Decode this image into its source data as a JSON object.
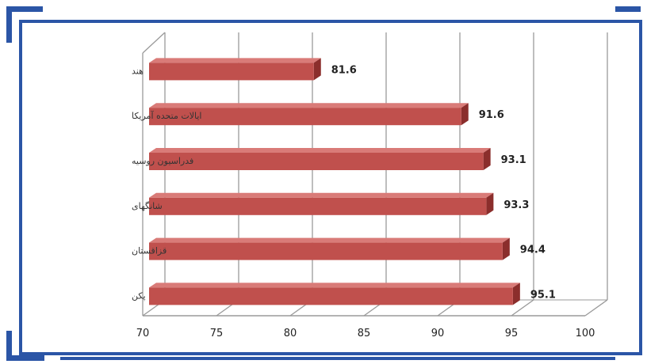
{
  "colors": {
    "frame": "#2b55a6",
    "bar_front": "#c0504d",
    "bar_top": "#d97b78",
    "bar_side": "#8b2e2c",
    "grid": "#9a9a9a"
  },
  "chart_data": {
    "type": "bar",
    "orientation": "horizontal",
    "style": "3d",
    "categories": [
      "هند",
      "ایالات متحده آمریکا",
      "فدراسیون روسیه",
      "شانگهای",
      "قزاقستان",
      "پکن"
    ],
    "values": [
      81.6,
      91.6,
      93.1,
      93.3,
      94.4,
      95.1
    ],
    "value_labels": [
      "81.6",
      "91.6",
      "93.1",
      "93.3",
      "94.4",
      "95.1"
    ],
    "x_ticks": [
      "70",
      "75",
      "80",
      "85",
      "90",
      "95",
      "100"
    ],
    "xlim": [
      70,
      100
    ],
    "grid": true,
    "legend": "none"
  }
}
